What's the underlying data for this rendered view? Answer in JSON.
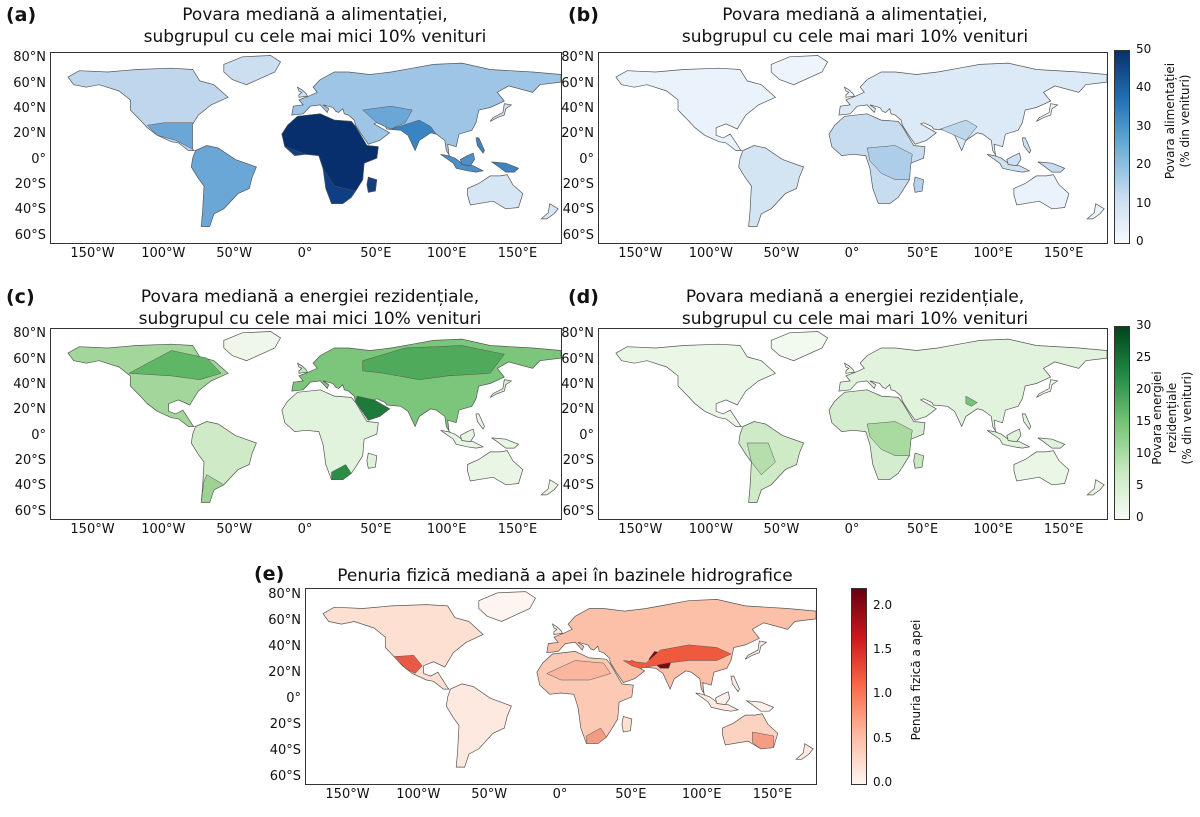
{
  "panels": [
    {
      "letter": "(a)",
      "title_line1": "Povara mediană a alimentației,",
      "title_line2": "subgrupul cu cele mai mici 10% venituri"
    },
    {
      "letter": "(b)",
      "title_line1": "Povara mediană a alimentației,",
      "title_line2": "subgrupul cu cele mai mari 10% venituri"
    },
    {
      "letter": "(c)",
      "title_line1": "Povara mediană a energiei rezidențiale,",
      "title_line2": "subgrupul cu cele mai mici 10% venituri"
    },
    {
      "letter": "(d)",
      "title_line1": "Povara mediană a energiei rezidențiale,",
      "title_line2": "subgrupul cu cele mai mari 10% venituri"
    },
    {
      "letter": "(e)",
      "title_line1": "Penuria fizică mediană a apei în bazinele hidrografice",
      "title_line2": ""
    }
  ],
  "lat_ticks": [
    "80°N",
    "60°N",
    "40°N",
    "20°N",
    "0°",
    "20°S",
    "40°S",
    "60°S"
  ],
  "lon_ticks": [
    "150°W",
    "100°W",
    "50°W",
    "0°",
    "50°E",
    "100°E",
    "150°E"
  ],
  "colorbars": {
    "food": {
      "label_line1": "Povara alimentației",
      "label_line2": "(% din venituri)",
      "ticks": [
        "50",
        "40",
        "30",
        "20",
        "10",
        "0"
      ],
      "min": 0,
      "max": 50,
      "colors": [
        "#f7fbff",
        "#c6dbef",
        "#6baed6",
        "#2171b5",
        "#08306b"
      ]
    },
    "energy": {
      "label_line1": "Povara energiei",
      "label_line2": "rezidențiale",
      "label_line3": "(% din venituri)",
      "ticks": [
        "30",
        "25",
        "20",
        "15",
        "10",
        "5",
        "0"
      ],
      "min": 0,
      "max": 30,
      "colors": [
        "#f7fcf5",
        "#c7e9c0",
        "#74c476",
        "#238b45",
        "#00441b"
      ]
    },
    "water": {
      "label": "Penuria fizică a apei",
      "ticks": [
        "2.0",
        "1.5",
        "1.0",
        "0.5",
        "0.0"
      ],
      "min": 0.0,
      "max": 2.2,
      "colors": [
        "#fff5f0",
        "#fcbba1",
        "#fb6a4a",
        "#cb181d",
        "#67000d"
      ]
    }
  }
}
